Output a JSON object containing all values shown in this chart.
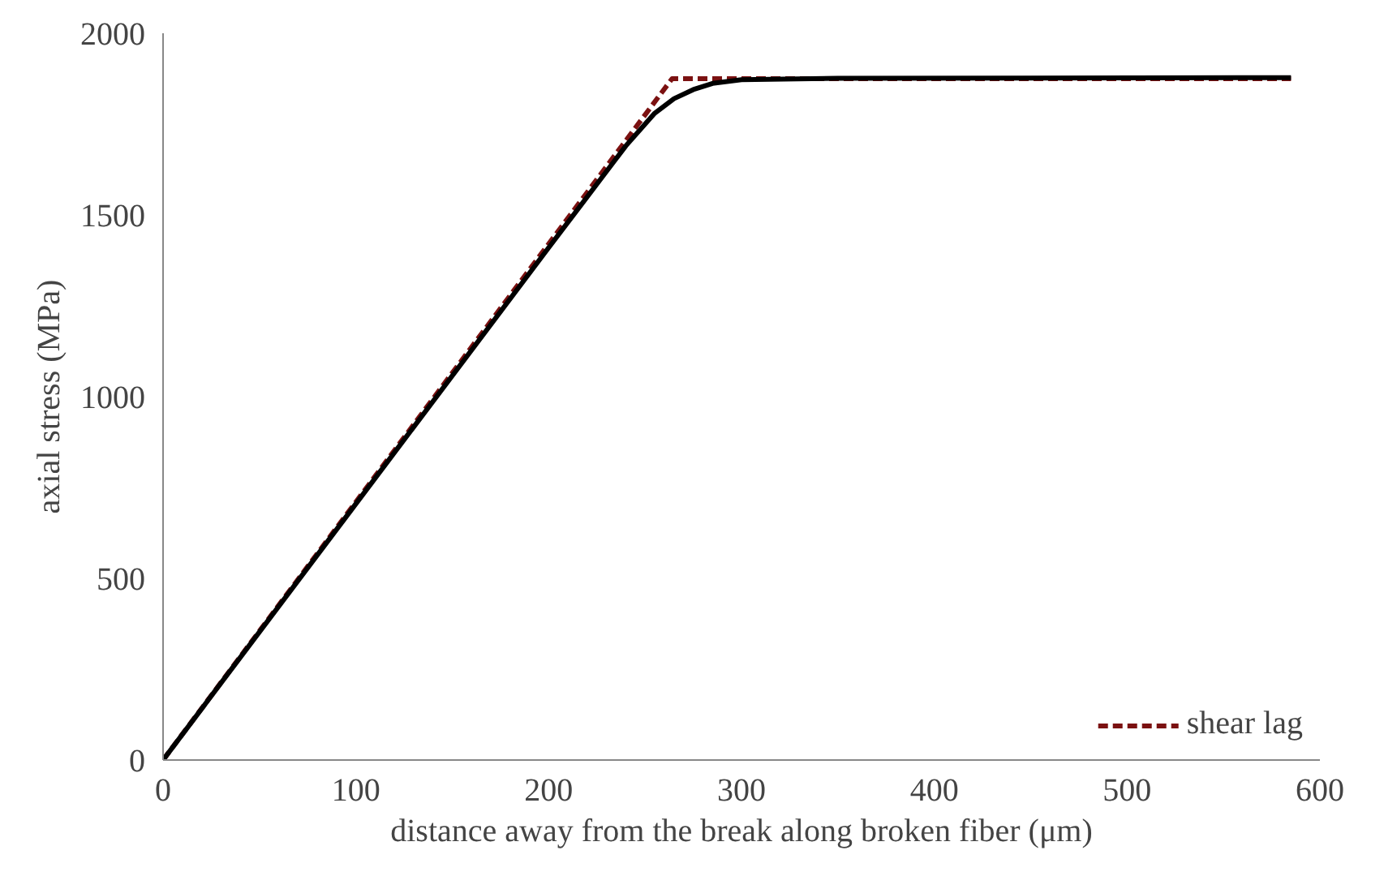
{
  "chart_data": {
    "type": "line",
    "xlabel": "distance away from the break along broken fiber (μm)",
    "ylabel": "axial stress (MPa)",
    "xlim": [
      0,
      600
    ],
    "xticks": [
      0,
      100,
      200,
      300,
      400,
      500,
      600
    ],
    "ylim": [
      0,
      2000
    ],
    "yticks": [
      0,
      500,
      1000,
      1500,
      2000
    ],
    "grid": false,
    "legend": "bottom right",
    "marker": "none",
    "series": [
      {
        "name": "shear lag",
        "color": "#7b1111",
        "line_style": "dashed",
        "x": [
          0,
          264,
          585
        ],
        "values": [
          0,
          1875,
          1875
        ]
      },
      {
        "color": "#000000",
        "line_style": "solid",
        "x": [
          0,
          100,
          200,
          240,
          255,
          265,
          275,
          285,
          300,
          350,
          585
        ],
        "values": [
          0,
          705,
          1410,
          1690,
          1780,
          1820,
          1845,
          1862,
          1872,
          1876,
          1878
        ]
      }
    ]
  }
}
